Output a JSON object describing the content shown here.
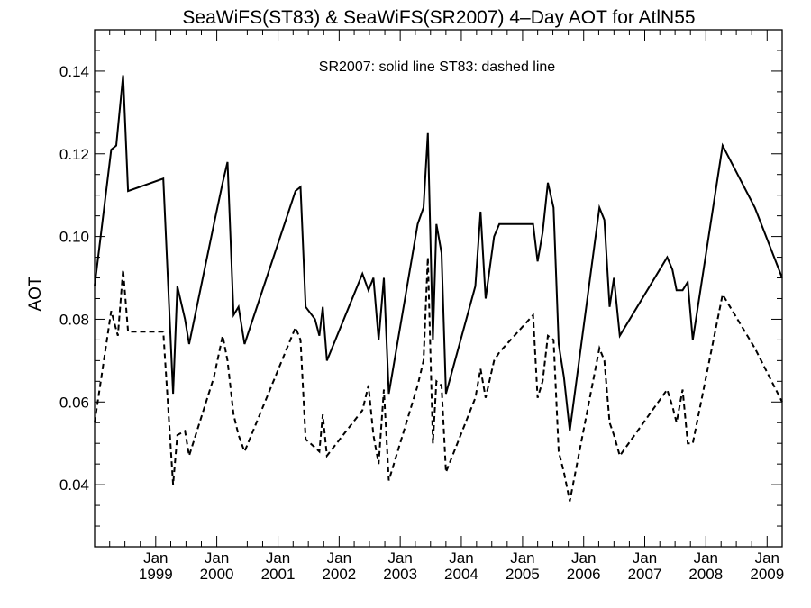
{
  "chart_data": {
    "type": "line",
    "title": "SeaWiFS(ST83) & SeaWiFS(SR2007) 4–Day AOT for AtlN55",
    "annotation": "SR2007: solid line   ST83: dashed line",
    "ylabel": "AOT",
    "xlabel": "",
    "xlim": [
      "1998-01-01",
      "2009-04-01"
    ],
    "ylim": [
      0.025,
      0.15
    ],
    "yticks": [
      0.04,
      0.06,
      0.08,
      0.1,
      0.12,
      0.14
    ],
    "ytick_labels": [
      "0.04",
      "0.06",
      "0.08",
      "0.10",
      "0.12",
      "0.14"
    ],
    "xticks": [
      {
        "date": "1999-01-01",
        "month": "Jan",
        "year": "1999"
      },
      {
        "date": "2000-01-01",
        "month": "Jan",
        "year": "2000"
      },
      {
        "date": "2001-01-01",
        "month": "Jan",
        "year": "2001"
      },
      {
        "date": "2002-01-01",
        "month": "Jan",
        "year": "2002"
      },
      {
        "date": "2003-01-01",
        "month": "Jan",
        "year": "2003"
      },
      {
        "date": "2004-01-01",
        "month": "Jan",
        "year": "2004"
      },
      {
        "date": "2005-01-01",
        "month": "Jan",
        "year": "2005"
      },
      {
        "date": "2006-01-01",
        "month": "Jan",
        "year": "2006"
      },
      {
        "date": "2007-01-01",
        "month": "Jan",
        "year": "2007"
      },
      {
        "date": "2008-01-01",
        "month": "Jan",
        "year": "2008"
      },
      {
        "date": "2009-01-01",
        "month": "Jan",
        "year": "2009"
      }
    ],
    "grid": false,
    "series": [
      {
        "name": "SR2007",
        "style": "solid",
        "color": "#000000",
        "points": [
          [
            "1998-01-01",
            0.088
          ],
          [
            "1998-04-10",
            0.121
          ],
          [
            "1998-05-10",
            0.122
          ],
          [
            "1998-06-20",
            0.139
          ],
          [
            "1998-07-20",
            0.111
          ],
          [
            "1999-02-15",
            0.114
          ],
          [
            "1999-04-15",
            0.062
          ],
          [
            "1999-05-10",
            0.088
          ],
          [
            "1999-06-25",
            0.08
          ],
          [
            "1999-07-20",
            0.074
          ],
          [
            "1999-12-15",
            0.103
          ],
          [
            "2000-02-05",
            0.113
          ],
          [
            "2000-03-05",
            0.118
          ],
          [
            "2000-04-10",
            0.081
          ],
          [
            "2000-05-10",
            0.083
          ],
          [
            "2000-06-15",
            0.074
          ],
          [
            "2001-04-15",
            0.111
          ],
          [
            "2001-05-15",
            0.112
          ],
          [
            "2001-06-15",
            0.083
          ],
          [
            "2001-08-10",
            0.08
          ],
          [
            "2001-09-05",
            0.076
          ],
          [
            "2001-09-25",
            0.083
          ],
          [
            "2001-10-20",
            0.07
          ],
          [
            "2002-05-20",
            0.091
          ],
          [
            "2002-06-25",
            0.087
          ],
          [
            "2002-07-25",
            0.09
          ],
          [
            "2002-08-25",
            0.075
          ],
          [
            "2002-09-25",
            0.09
          ],
          [
            "2002-10-25",
            0.062
          ],
          [
            "2003-04-15",
            0.103
          ],
          [
            "2003-05-20",
            0.107
          ],
          [
            "2003-06-15",
            0.125
          ],
          [
            "2003-07-15",
            0.075
          ],
          [
            "2003-08-05",
            0.103
          ],
          [
            "2003-09-05",
            0.096
          ],
          [
            "2003-10-01",
            0.062
          ],
          [
            "2004-03-25",
            0.088
          ],
          [
            "2004-04-25",
            0.106
          ],
          [
            "2004-05-25",
            0.085
          ],
          [
            "2004-07-15",
            0.1
          ],
          [
            "2004-08-15",
            0.103
          ],
          [
            "2005-03-05",
            0.103
          ],
          [
            "2005-04-01",
            0.094
          ],
          [
            "2005-05-01",
            0.101
          ],
          [
            "2005-06-01",
            0.113
          ],
          [
            "2005-07-05",
            0.107
          ],
          [
            "2005-08-05",
            0.074
          ],
          [
            "2005-09-05",
            0.066
          ],
          [
            "2005-10-10",
            0.053
          ],
          [
            "2006-04-05",
            0.107
          ],
          [
            "2006-05-05",
            0.104
          ],
          [
            "2006-06-05",
            0.083
          ],
          [
            "2006-07-01",
            0.09
          ],
          [
            "2006-08-05",
            0.076
          ],
          [
            "2007-05-15",
            0.095
          ],
          [
            "2007-06-15",
            0.092
          ],
          [
            "2007-07-10",
            0.087
          ],
          [
            "2007-08-15",
            0.087
          ],
          [
            "2007-09-15",
            0.089
          ],
          [
            "2007-10-15",
            0.075
          ],
          [
            "2008-04-10",
            0.122
          ],
          [
            "2008-10-20",
            0.107
          ],
          [
            "2009-04-01",
            0.09
          ]
        ]
      },
      {
        "name": "ST83",
        "style": "dashed",
        "color": "#000000",
        "points": [
          [
            "1998-01-01",
            0.055
          ],
          [
            "1998-04-10",
            0.082
          ],
          [
            "1998-05-20",
            0.076
          ],
          [
            "1998-06-20",
            0.092
          ],
          [
            "1998-07-20",
            0.077
          ],
          [
            "1999-02-15",
            0.077
          ],
          [
            "1999-04-15",
            0.04
          ],
          [
            "1999-05-10",
            0.052
          ],
          [
            "1999-06-25",
            0.053
          ],
          [
            "1999-07-20",
            0.047
          ],
          [
            "1999-12-15",
            0.066
          ],
          [
            "2000-02-05",
            0.076
          ],
          [
            "2000-03-05",
            0.07
          ],
          [
            "2000-04-10",
            0.057
          ],
          [
            "2000-05-10",
            0.052
          ],
          [
            "2000-06-15",
            0.048
          ],
          [
            "2001-04-15",
            0.078
          ],
          [
            "2001-05-15",
            0.075
          ],
          [
            "2001-06-15",
            0.051
          ],
          [
            "2001-08-10",
            0.049
          ],
          [
            "2001-09-05",
            0.048
          ],
          [
            "2001-09-25",
            0.057
          ],
          [
            "2001-10-20",
            0.047
          ],
          [
            "2002-05-20",
            0.058
          ],
          [
            "2002-06-25",
            0.064
          ],
          [
            "2002-07-25",
            0.052
          ],
          [
            "2002-08-25",
            0.045
          ],
          [
            "2002-09-25",
            0.063
          ],
          [
            "2002-10-25",
            0.041
          ],
          [
            "2003-04-15",
            0.064
          ],
          [
            "2003-05-20",
            0.07
          ],
          [
            "2003-06-15",
            0.095
          ],
          [
            "2003-07-15",
            0.05
          ],
          [
            "2003-08-05",
            0.065
          ],
          [
            "2003-09-05",
            0.064
          ],
          [
            "2003-10-01",
            0.043
          ],
          [
            "2004-03-25",
            0.061
          ],
          [
            "2004-04-25",
            0.068
          ],
          [
            "2004-05-25",
            0.061
          ],
          [
            "2004-07-15",
            0.07
          ],
          [
            "2004-08-15",
            0.072
          ],
          [
            "2005-03-05",
            0.081
          ],
          [
            "2005-04-01",
            0.061
          ],
          [
            "2005-05-01",
            0.065
          ],
          [
            "2005-06-01",
            0.076
          ],
          [
            "2005-07-05",
            0.075
          ],
          [
            "2005-08-05",
            0.048
          ],
          [
            "2005-09-05",
            0.043
          ],
          [
            "2005-10-10",
            0.036
          ],
          [
            "2006-04-05",
            0.073
          ],
          [
            "2006-05-05",
            0.07
          ],
          [
            "2006-06-05",
            0.055
          ],
          [
            "2006-07-01",
            0.052
          ],
          [
            "2006-08-05",
            0.047
          ],
          [
            "2007-05-15",
            0.063
          ],
          [
            "2007-06-15",
            0.059
          ],
          [
            "2007-07-10",
            0.055
          ],
          [
            "2007-08-15",
            0.063
          ],
          [
            "2007-09-15",
            0.05
          ],
          [
            "2007-10-15",
            0.05
          ],
          [
            "2008-04-10",
            0.086
          ],
          [
            "2008-10-20",
            0.073
          ],
          [
            "2009-04-01",
            0.06
          ]
        ]
      }
    ]
  }
}
